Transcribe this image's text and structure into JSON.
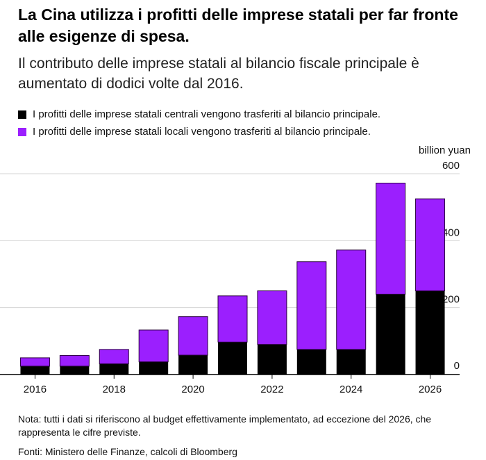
{
  "header": {
    "title": "La Cina utilizza i profitti delle imprese statali per far fronte alle esigenze di spesa.",
    "subtitle": "Il contributo delle imprese statali al bilancio fiscale principale è aumentato di dodici volte dal 2016."
  },
  "legend": {
    "items": [
      {
        "label": "I profitti delle imprese statali centrali vengono trasferiti al bilancio principale.",
        "color": "#000000"
      },
      {
        "label": "I profitti delle imprese statali locali vengono trasferiti al bilancio principale.",
        "color": "#9b1ffe"
      }
    ]
  },
  "footer": {
    "note": "Nota: tutti i dati si riferiscono al budget effettivamente implementato, ad eccezione del 2026, che rappresenta le cifre previste.",
    "source": "Fonti: Ministero delle Finanze, calcoli di Bloomberg"
  },
  "chart_data": {
    "type": "bar",
    "stacked": true,
    "x": [
      2016,
      2017,
      2018,
      2019,
      2020,
      2021,
      2022,
      2023,
      2024,
      2025,
      2026
    ],
    "x_tick_labels": [
      "2016",
      "2018",
      "2020",
      "2022",
      "2024",
      "2026"
    ],
    "y_unit_label": "billion yuan",
    "y_tick_labels": [
      "0",
      "200",
      "400",
      "600"
    ],
    "ylim": [
      0,
      600
    ],
    "grid": true,
    "y_axis_side": "right",
    "series": [
      {
        "name": "I profitti delle imprese statali centrali vengono trasferiti al bilancio principale.",
        "color": "#000000",
        "values": [
          25,
          25,
          32,
          38,
          58,
          97,
          90,
          75,
          75,
          240,
          250
        ]
      },
      {
        "name": "I profitti delle imprese statali locali vengono trasferiti al bilancio principale.",
        "color": "#9b1ffe",
        "values": [
          25,
          32,
          43,
          95,
          115,
          138,
          160,
          262,
          297,
          332,
          275
        ]
      }
    ]
  }
}
